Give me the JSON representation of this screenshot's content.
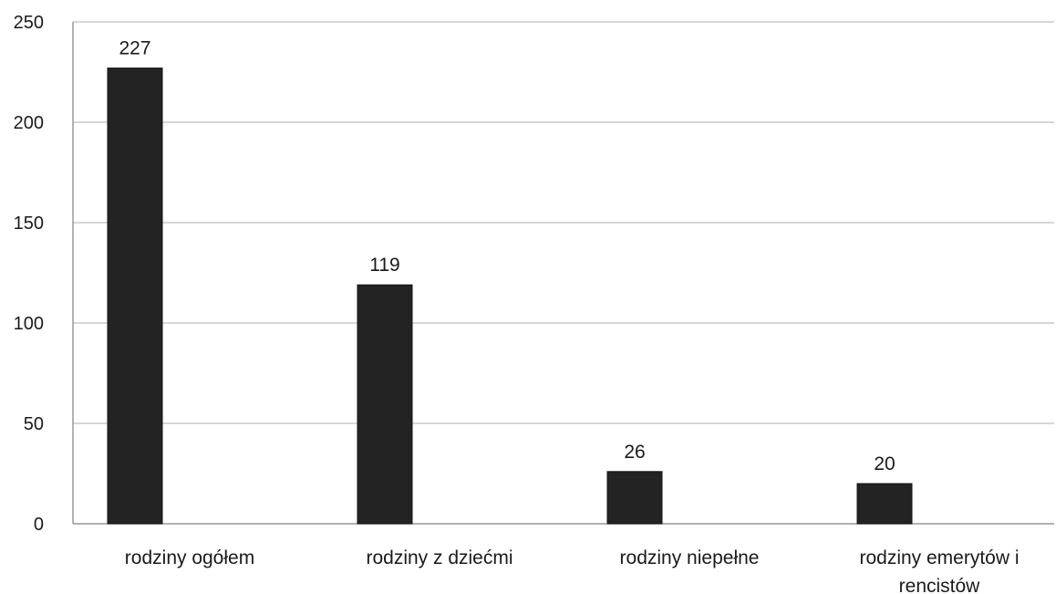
{
  "chart_data": {
    "type": "bar",
    "title": "",
    "xlabel": "",
    "ylabel": "",
    "categories": [
      [
        "rodziny ogółem"
      ],
      [
        "rodziny z dziećmi"
      ],
      [
        "rodziny niepełne"
      ],
      [
        "rodziny emerytów i",
        "rencistów"
      ]
    ],
    "values": [
      227,
      119,
      26,
      20
    ],
    "data_labels": [
      "227",
      "119",
      "26",
      "20"
    ],
    "ylim": [
      0,
      250
    ],
    "yticks": [
      0,
      50,
      100,
      150,
      200,
      250
    ],
    "ytick_labels": [
      "0",
      "50",
      "100",
      "150",
      "200",
      "250"
    ],
    "grid": true,
    "legend": "none",
    "bar_color": "#232323"
  }
}
